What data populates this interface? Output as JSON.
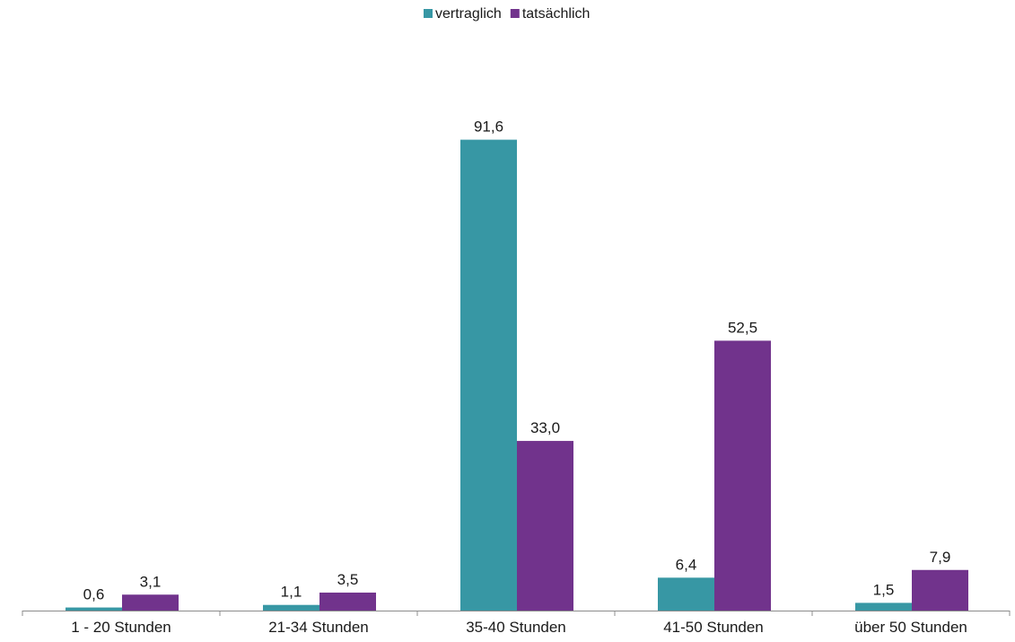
{
  "chart_data": {
    "type": "bar",
    "title": "",
    "xlabel": "",
    "ylabel": "",
    "categories": [
      "1 - 20 Stunden",
      "21-34 Stunden",
      "35-40 Stunden",
      "41-50 Stunden",
      "über 50 Stunden"
    ],
    "series": [
      {
        "name": "vertraglich",
        "color": "#3797a4",
        "values": [
          0.6,
          1.1,
          91.6,
          6.4,
          1.5
        ],
        "labels": [
          "0,6",
          "1,1",
          "91,6",
          "6,4",
          "1,5"
        ]
      },
      {
        "name": "tatsächlich",
        "color": "#71338c",
        "values": [
          3.1,
          3.5,
          33.0,
          52.5,
          7.9
        ],
        "labels": [
          "3,1",
          "3,5",
          "33,0",
          "52,5",
          "7,9"
        ]
      }
    ],
    "ylim": [
      0,
      100
    ],
    "y_axis_visible": false,
    "grid": false,
    "legend": "top-center",
    "data_labels": true
  }
}
